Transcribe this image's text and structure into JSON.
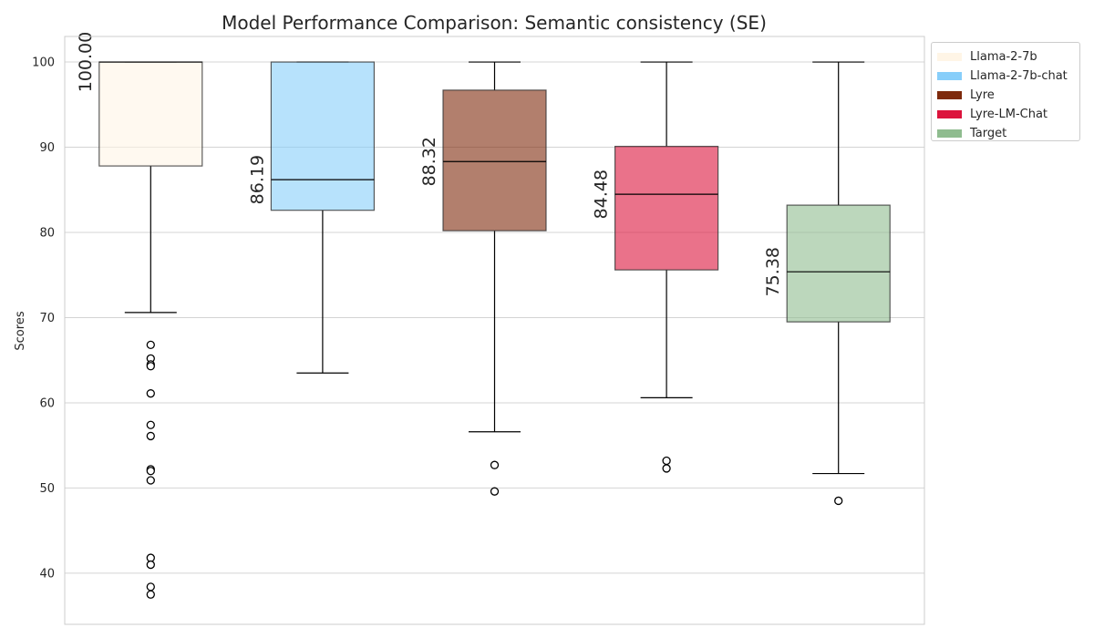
{
  "chart_data": {
    "type": "box",
    "title": "Model Performance Comparison: Semantic consistency (SE)",
    "xlabel": "",
    "ylabel": "Scores",
    "ylim": [
      34,
      103
    ],
    "yticks": [
      40,
      50,
      60,
      70,
      80,
      90,
      100
    ],
    "grid": true,
    "legend_position": "upper-right-outside",
    "series": [
      {
        "name": "Llama-2-7b",
        "color": "#FFF5E6",
        "median": 100.0,
        "median_label": "100.00",
        "q1": 87.8,
        "q3": 100.0,
        "whisker_low": 70.6,
        "whisker_high": 100.0,
        "outliers": [
          66.8,
          65.2,
          64.5,
          64.3,
          61.1,
          57.4,
          56.1,
          52.2,
          52.0,
          50.9,
          41.8,
          41.0,
          38.4,
          37.5
        ]
      },
      {
        "name": "Llama-2-7b-chat",
        "color": "#87CEFA",
        "median": 86.19,
        "median_label": "86.19",
        "q1": 82.6,
        "q3": 100.0,
        "whisker_low": 63.5,
        "whisker_high": 100.0,
        "outliers": []
      },
      {
        "name": "Lyre",
        "color": "#7E2A0C",
        "median": 88.32,
        "median_label": "88.32",
        "q1": 80.2,
        "q3": 96.7,
        "whisker_low": 56.6,
        "whisker_high": 100.0,
        "outliers": [
          52.7,
          49.6
        ]
      },
      {
        "name": "Lyre-LM-Chat",
        "color": "#DC143C",
        "median": 84.48,
        "median_label": "84.48",
        "q1": 75.6,
        "q3": 90.1,
        "whisker_low": 60.6,
        "whisker_high": 100.0,
        "outliers": [
          53.2,
          52.3
        ]
      },
      {
        "name": "Target",
        "color": "#8FBC8F",
        "median": 75.38,
        "median_label": "75.38",
        "q1": 69.5,
        "q3": 83.2,
        "whisker_low": 51.7,
        "whisker_high": 100.0,
        "outliers": [
          48.5
        ]
      }
    ]
  }
}
